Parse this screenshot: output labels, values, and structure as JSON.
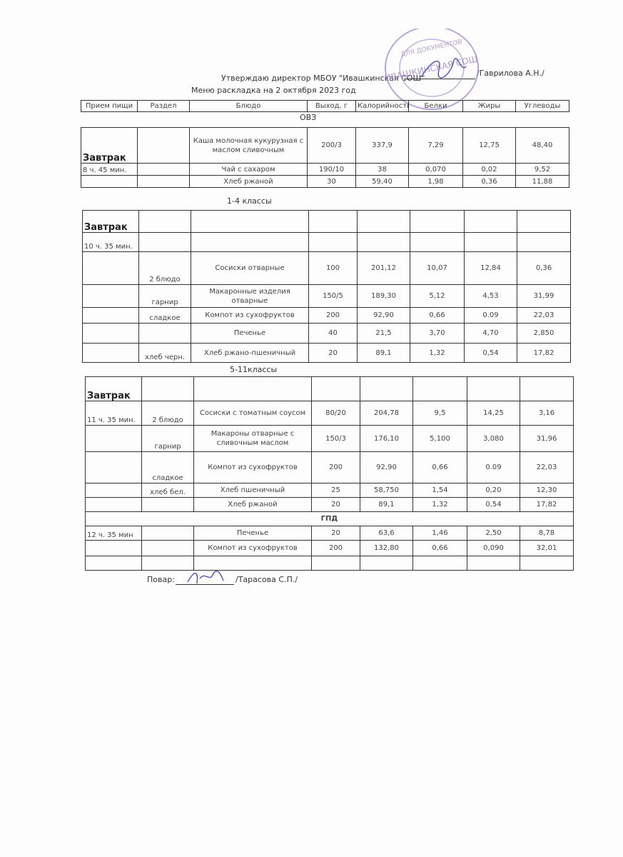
{
  "header": {
    "approval": "Утверждаю директор МБОУ \"Ивашкинская СОШ\"",
    "approver": "/Гаврилова А.Н./",
    "title": "Меню раскладка на 2 октября 2023 год"
  },
  "columns": [
    "Прием пищи",
    "Раздел",
    "Блюдо",
    "Выход, г",
    "Калорийность",
    "Белки",
    "Жиры",
    "Углеводы"
  ],
  "sections": [
    {
      "label": "ОВЗ",
      "rows": [
        [
          "Завтрак",
          "",
          "Каша молочная кукурузная с маслом сливочным",
          "200/3",
          "337,9",
          "7,29",
          "12,75",
          "48,40"
        ],
        [
          "8 ч. 45 мин.",
          "",
          "Чай с сахаром",
          "190/10",
          "38",
          "0,070",
          "0,02",
          "9,52"
        ],
        [
          "",
          "",
          "Хлеб ржаной",
          "30",
          "59,40",
          "1,98",
          "0,36",
          "11,88"
        ]
      ]
    },
    {
      "label": "1-4 классы",
      "rows": [
        [
          "Завтрак",
          "",
          "",
          "",
          "",
          "",
          "",
          ""
        ],
        [
          "10 ч. 35 мин.",
          "",
          "",
          "",
          "",
          "",
          "",
          ""
        ],
        [
          "",
          "2 блюдо",
          "Сосиски отварные",
          "100",
          "201,12",
          "10,07",
          "12,84",
          "0,36"
        ],
        [
          "",
          "гарнир",
          "Макаронные изделия отварные",
          "150/5",
          "189,30",
          "5,12",
          "4,53",
          "31,99"
        ],
        [
          "",
          "сладкое",
          "Компот из сухофруктов",
          "200",
          "92,90",
          "0,66",
          "0.09",
          "22,03"
        ],
        [
          "",
          "",
          "Печенье",
          "40",
          "21,5",
          "3,70",
          "4,70",
          "2,850"
        ],
        [
          "",
          "хлеб черн.",
          "Хлеб ржано-пшеничный",
          "20",
          "89,1",
          "1,32",
          "0,54",
          "17,82"
        ]
      ]
    },
    {
      "label": "5-11классы",
      "rows": [
        [
          "Завтрак",
          "",
          "",
          "",
          "",
          "",
          "",
          ""
        ],
        [
          "11 ч. 35 мин.",
          "2 блюдо",
          "Сосиски с томатным соусом",
          "80/20",
          "204,78",
          "9,5",
          "14,25",
          "3,16"
        ],
        [
          "",
          "гарнир",
          "Макароны отварные с сливочным маслом",
          "150/3",
          "176,10",
          "5,100",
          "3,080",
          "31,96"
        ],
        [
          "",
          "сладкое",
          "Компот из сухофруктов",
          "200",
          "92,90",
          "0,66",
          "0.09",
          "22,03"
        ],
        [
          "",
          "хлеб бел.",
          "Хлеб пшеничный",
          "25",
          "58,750",
          "1,54",
          "0,20",
          "12,30"
        ],
        [
          "",
          "",
          "Хлеб ржаной",
          "20",
          "89,1",
          "1,32",
          "0,54",
          "17,82"
        ],
        [
          "ГПД"
        ],
        [
          "12 ч. 35 мин",
          "",
          "Печенье",
          "20",
          "63,6",
          "1,46",
          "2,50",
          "8,78"
        ],
        [
          "",
          "",
          "Компот из сухофруктов",
          "200",
          "132,80",
          "0,66",
          "0,090",
          "32,01"
        ],
        [
          "",
          "",
          "",
          "",
          "",
          "",
          "",
          ""
        ]
      ]
    }
  ],
  "footer": {
    "cook_label": "Повар:",
    "cook_name": "/Тарасова С.П./"
  },
  "stamp": {
    "text": "ИВАШКИНСКАЯ СОШ",
    "top_text": "ДЛЯ ДОКУМЕНТОВ",
    "color": "#9b7fc4"
  }
}
